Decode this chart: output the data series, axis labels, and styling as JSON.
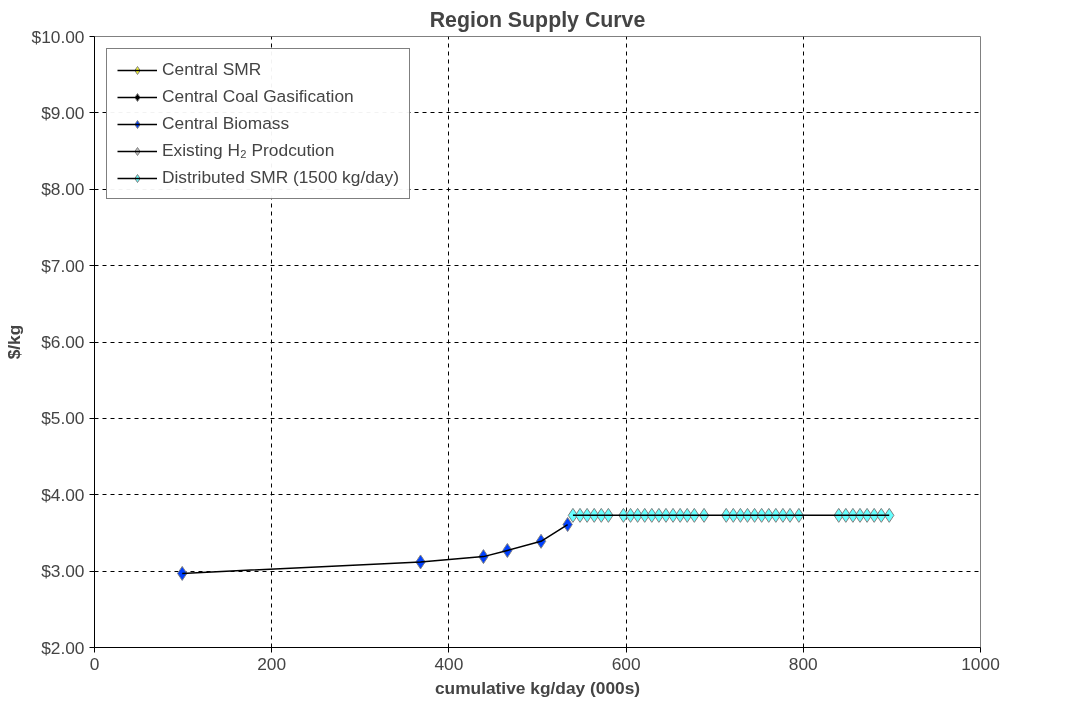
{
  "chart_data": {
    "type": "line",
    "title": "Region Supply Curve",
    "xlabel": "cumulative kg/day (000s)",
    "ylabel": "$/kg",
    "xlim": [
      0,
      1000
    ],
    "xticks": [
      0,
      200,
      400,
      600,
      800,
      1000
    ],
    "ylim": [
      2,
      10
    ],
    "yticks": [
      {
        "value": 2,
        "label": "$2.00"
      },
      {
        "value": 3,
        "label": "$3.00"
      },
      {
        "value": 4,
        "label": "$4.00"
      },
      {
        "value": 5,
        "label": "$5.00"
      },
      {
        "value": 6,
        "label": "$6.00"
      },
      {
        "value": 7,
        "label": "$7.00"
      },
      {
        "value": 8,
        "label": "$8.00"
      },
      {
        "value": 9,
        "label": "$9.00"
      },
      {
        "value": 10,
        "label": "$10.00"
      }
    ],
    "grid": true,
    "legend": "top left",
    "marker": "diamond",
    "line_style": "solid",
    "series": [
      {
        "name": "Central SMR",
        "color": "#ffff33"
      },
      {
        "name": "Central Coal Gasification",
        "color": "#000000"
      },
      {
        "name": "Central Biomass",
        "color": "#0040ff",
        "x": [
          99,
          368,
          439,
          466,
          504,
          534
        ],
        "values": [
          2.97,
          3.12,
          3.19,
          3.27,
          3.39,
          3.61
        ]
      },
      {
        "name": "Existing H₂ Prodcution",
        "color": "#c0c0c0"
      },
      {
        "name": "Distributed SMR (1500 kg/day)",
        "color": "#66ffff",
        "x": [
          540,
          548,
          556,
          564,
          572,
          580,
          597,
          605,
          613,
          621,
          629,
          637,
          645,
          653,
          661,
          669,
          677,
          688,
          713,
          721,
          729,
          737,
          745,
          753,
          761,
          769,
          777,
          785,
          795,
          840,
          848,
          856,
          864,
          872,
          880,
          888,
          897
        ],
        "values": [
          3.73,
          3.73,
          3.73,
          3.73,
          3.73,
          3.73,
          3.73,
          3.73,
          3.73,
          3.73,
          3.73,
          3.73,
          3.73,
          3.73,
          3.73,
          3.73,
          3.73,
          3.73,
          3.73,
          3.73,
          3.73,
          3.73,
          3.73,
          3.73,
          3.73,
          3.73,
          3.73,
          3.73,
          3.73,
          3.73,
          3.73,
          3.73,
          3.73,
          3.73,
          3.73,
          3.73,
          3.73
        ]
      }
    ]
  }
}
